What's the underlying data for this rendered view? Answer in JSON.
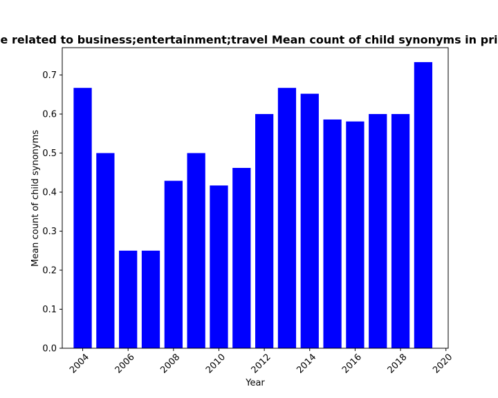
{
  "chart_data": {
    "type": "bar",
    "title": "e related to business;entertainment;travel Mean count of child synonyms in pri",
    "xlabel": "Year",
    "ylabel": "Mean count of child synonyms",
    "x": [
      2004,
      2005,
      2006,
      2007,
      2008,
      2009,
      2010,
      2011,
      2012,
      2013,
      2014,
      2015,
      2016,
      2017,
      2018,
      2019
    ],
    "values": [
      0.667,
      0.5,
      0.25,
      0.25,
      0.429,
      0.5,
      0.417,
      0.462,
      0.6,
      0.667,
      0.652,
      0.586,
      0.581,
      0.6,
      0.6,
      0.733
    ],
    "xlim": [
      2003.1,
      2020.1
    ],
    "ylim": [
      0,
      0.77
    ],
    "xticks": [
      2004,
      2006,
      2008,
      2010,
      2012,
      2014,
      2016,
      2018,
      2020
    ],
    "yticks": [
      0.0,
      0.1,
      0.2,
      0.3,
      0.4,
      0.5,
      0.6,
      0.7
    ],
    "bar_color": "#0000ff",
    "grid": false
  }
}
